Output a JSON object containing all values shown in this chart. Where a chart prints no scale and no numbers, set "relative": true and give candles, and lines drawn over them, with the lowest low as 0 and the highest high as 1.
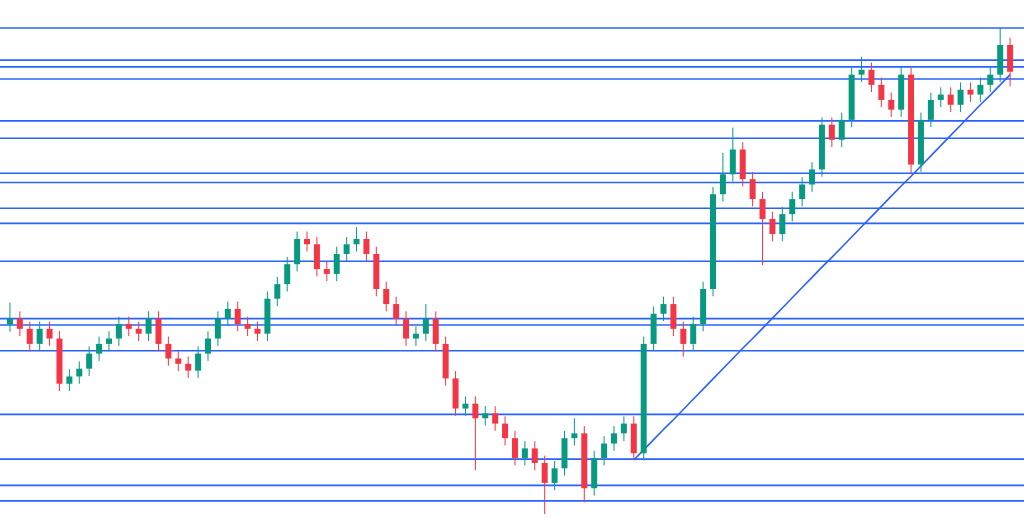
{
  "chart_data": {
    "type": "candlestick",
    "relative": true,
    "categories": [
      null,
      null,
      null,
      null,
      null,
      null,
      null,
      null,
      null,
      null,
      null,
      null,
      null,
      null,
      null,
      null,
      null,
      null,
      null,
      null,
      null,
      null,
      null,
      null,
      null,
      null,
      null,
      null,
      null,
      null,
      null,
      null,
      null,
      null,
      null,
      null,
      null,
      null,
      null,
      null,
      null,
      null,
      null,
      null,
      null,
      null,
      null,
      null,
      null,
      null,
      null,
      null,
      null,
      null,
      null,
      null,
      null,
      null,
      null,
      null,
      null,
      null,
      null,
      null,
      null,
      null,
      null,
      null,
      null,
      null,
      null,
      null,
      null,
      null,
      null,
      null,
      null,
      null,
      null,
      null,
      null,
      null,
      null,
      null,
      null,
      null,
      null,
      null,
      null,
      null,
      null,
      null,
      null,
      null,
      null,
      null,
      null,
      null,
      null,
      null,
      null,
      null
    ],
    "ohlc": [
      [
        0.39,
        0.435,
        0.375,
        0.402
      ],
      [
        0.402,
        0.417,
        0.366,
        0.381
      ],
      [
        0.381,
        0.396,
        0.335,
        0.35
      ],
      [
        0.35,
        0.396,
        0.335,
        0.381
      ],
      [
        0.381,
        0.396,
        0.346,
        0.361
      ],
      [
        0.361,
        0.376,
        0.253,
        0.268
      ],
      [
        0.268,
        0.298,
        0.253,
        0.283
      ],
      [
        0.283,
        0.314,
        0.268,
        0.299
      ],
      [
        0.299,
        0.345,
        0.284,
        0.33
      ],
      [
        0.33,
        0.365,
        0.315,
        0.35
      ],
      [
        0.35,
        0.376,
        0.335,
        0.361
      ],
      [
        0.361,
        0.406,
        0.346,
        0.391
      ],
      [
        0.391,
        0.406,
        0.366,
        0.381
      ],
      [
        0.381,
        0.396,
        0.356,
        0.371
      ],
      [
        0.371,
        0.417,
        0.356,
        0.402
      ],
      [
        0.402,
        0.417,
        0.335,
        0.35
      ],
      [
        0.35,
        0.365,
        0.305,
        0.32
      ],
      [
        0.32,
        0.335,
        0.294,
        0.309
      ],
      [
        0.309,
        0.324,
        0.28,
        0.295
      ],
      [
        0.295,
        0.345,
        0.28,
        0.33
      ],
      [
        0.33,
        0.376,
        0.315,
        0.361
      ],
      [
        0.361,
        0.417,
        0.346,
        0.402
      ],
      [
        0.402,
        0.437,
        0.387,
        0.422
      ],
      [
        0.422,
        0.437,
        0.376,
        0.391
      ],
      [
        0.391,
        0.406,
        0.366,
        0.381
      ],
      [
        0.381,
        0.396,
        0.356,
        0.371
      ],
      [
        0.371,
        0.458,
        0.356,
        0.443
      ],
      [
        0.443,
        0.488,
        0.428,
        0.473
      ],
      [
        0.473,
        0.529,
        0.458,
        0.514
      ],
      [
        0.514,
        0.581,
        0.499,
        0.566
      ],
      [
        0.566,
        0.581,
        0.54,
        0.555
      ],
      [
        0.555,
        0.57,
        0.489,
        0.504
      ],
      [
        0.504,
        0.519,
        0.479,
        0.494
      ],
      [
        0.494,
        0.55,
        0.479,
        0.535
      ],
      [
        0.535,
        0.57,
        0.52,
        0.555
      ],
      [
        0.555,
        0.59,
        0.54,
        0.566
      ],
      [
        0.566,
        0.581,
        0.52,
        0.535
      ],
      [
        0.535,
        0.55,
        0.448,
        0.463
      ],
      [
        0.463,
        0.478,
        0.417,
        0.432
      ],
      [
        0.432,
        0.447,
        0.387,
        0.402
      ],
      [
        0.402,
        0.417,
        0.346,
        0.361
      ],
      [
        0.361,
        0.386,
        0.346,
        0.371
      ],
      [
        0.371,
        0.432,
        0.356,
        0.402
      ],
      [
        0.402,
        0.417,
        0.335,
        0.35
      ],
      [
        0.35,
        0.365,
        0.264,
        0.279
      ],
      [
        0.279,
        0.294,
        0.202,
        0.217
      ],
      [
        0.217,
        0.242,
        0.202,
        0.227
      ],
      [
        0.227,
        0.242,
        0.09,
        0.197
      ],
      [
        0.197,
        0.222,
        0.182,
        0.207
      ],
      [
        0.207,
        0.222,
        0.171,
        0.186
      ],
      [
        0.186,
        0.201,
        0.141,
        0.156
      ],
      [
        0.156,
        0.171,
        0.1,
        0.115
      ],
      [
        0.115,
        0.15,
        0.1,
        0.135
      ],
      [
        0.135,
        0.15,
        0.09,
        0.105
      ],
      [
        0.105,
        0.12,
        0.0,
        0.064
      ],
      [
        0.064,
        0.109,
        0.049,
        0.094
      ],
      [
        0.094,
        0.171,
        0.079,
        0.156
      ],
      [
        0.156,
        0.197,
        0.141,
        0.166
      ],
      [
        0.166,
        0.181,
        0.024,
        0.053
      ],
      [
        0.053,
        0.13,
        0.038,
        0.115
      ],
      [
        0.115,
        0.16,
        0.1,
        0.145
      ],
      [
        0.145,
        0.181,
        0.13,
        0.166
      ],
      [
        0.166,
        0.201,
        0.15,
        0.186
      ],
      [
        0.186,
        0.201,
        0.111,
        0.125
      ],
      [
        0.125,
        0.365,
        0.11,
        0.35
      ],
      [
        0.35,
        0.427,
        0.335,
        0.412
      ],
      [
        0.412,
        0.447,
        0.397,
        0.432
      ],
      [
        0.432,
        0.447,
        0.366,
        0.381
      ],
      [
        0.381,
        0.396,
        0.324,
        0.35
      ],
      [
        0.35,
        0.406,
        0.335,
        0.391
      ],
      [
        0.391,
        0.478,
        0.376,
        0.463
      ],
      [
        0.463,
        0.673,
        0.448,
        0.658
      ],
      [
        0.658,
        0.743,
        0.643,
        0.699
      ],
      [
        0.699,
        0.795,
        0.684,
        0.75
      ],
      [
        0.75,
        0.765,
        0.674,
        0.689
      ],
      [
        0.689,
        0.704,
        0.633,
        0.648
      ],
      [
        0.648,
        0.663,
        0.512,
        0.607
      ],
      [
        0.607,
        0.622,
        0.561,
        0.576
      ],
      [
        0.576,
        0.632,
        0.561,
        0.617
      ],
      [
        0.617,
        0.663,
        0.602,
        0.648
      ],
      [
        0.648,
        0.693,
        0.633,
        0.678
      ],
      [
        0.678,
        0.724,
        0.663,
        0.709
      ],
      [
        0.709,
        0.816,
        0.694,
        0.801
      ],
      [
        0.801,
        0.816,
        0.755,
        0.77
      ],
      [
        0.77,
        0.826,
        0.755,
        0.811
      ],
      [
        0.811,
        0.919,
        0.796,
        0.904
      ],
      [
        0.904,
        0.941,
        0.889,
        0.914
      ],
      [
        0.914,
        0.929,
        0.868,
        0.883
      ],
      [
        0.883,
        0.898,
        0.837,
        0.852
      ],
      [
        0.852,
        0.867,
        0.817,
        0.832
      ],
      [
        0.832,
        0.919,
        0.817,
        0.904
      ],
      [
        0.904,
        0.919,
        0.701,
        0.719
      ],
      [
        0.719,
        0.826,
        0.704,
        0.811
      ],
      [
        0.811,
        0.867,
        0.796,
        0.852
      ],
      [
        0.852,
        0.878,
        0.837,
        0.863
      ],
      [
        0.863,
        0.878,
        0.827,
        0.842
      ],
      [
        0.842,
        0.888,
        0.827,
        0.873
      ],
      [
        0.873,
        0.888,
        0.848,
        0.863
      ],
      [
        0.863,
        0.898,
        0.848,
        0.883
      ],
      [
        0.883,
        0.919,
        0.868,
        0.904
      ],
      [
        0.904,
        1.0,
        0.889,
        0.965
      ],
      [
        0.965,
        0.98,
        0.88,
        0.91
      ]
    ],
    "colors": [
      "#089981",
      "#f23645",
      "#f23645",
      "#089981",
      "#f23645",
      "#f23645",
      "#089981",
      "#089981",
      "#089981",
      "#089981",
      "#089981",
      "#089981",
      "#f23645",
      "#f23645",
      "#089981",
      "#f23645",
      "#f23645",
      "#f23645",
      "#f23645",
      "#089981",
      "#089981",
      "#089981",
      "#089981",
      "#f23645",
      "#f23645",
      "#f23645",
      "#089981",
      "#089981",
      "#089981",
      "#089981",
      "#f23645",
      "#f23645",
      "#f23645",
      "#089981",
      "#089981",
      "#089981",
      "#f23645",
      "#f23645",
      "#f23645",
      "#f23645",
      "#f23645",
      "#089981",
      "#089981",
      "#f23645",
      "#f23645",
      "#f23645",
      "#089981",
      "#f23645",
      "#089981",
      "#f23645",
      "#f23645",
      "#f23645",
      "#089981",
      "#f23645",
      "#f23645",
      "#089981",
      "#089981",
      "#089981",
      "#f23645",
      "#089981",
      "#089981",
      "#089981",
      "#089981",
      "#f23645",
      "#089981",
      "#089981",
      "#089981",
      "#f23645",
      "#f23645",
      "#089981",
      "#089981",
      "#089981",
      "#089981",
      "#089981",
      "#f23645",
      "#f23645",
      "#f23645",
      "#f23645",
      "#089981",
      "#089981",
      "#089981",
      "#089981",
      "#089981",
      "#f23645",
      "#089981",
      "#089981",
      "#089981",
      "#f23645",
      "#f23645",
      "#f23645",
      "#089981",
      "#f23645",
      "#089981",
      "#089981",
      "#089981",
      "#f23645",
      "#089981",
      "#f23645",
      "#089981",
      "#089981",
      "#089981",
      "#f23645"
    ],
    "series": [
      {
        "type": "line",
        "color": "#2962ff",
        "values": [
          null,
          null,
          null,
          null,
          null,
          null,
          null,
          null,
          null,
          null,
          null,
          null,
          null,
          null,
          null,
          null,
          null,
          null,
          null,
          null,
          null,
          null,
          null,
          null,
          null,
          null,
          null,
          null,
          null,
          null,
          null,
          null,
          null,
          null,
          null,
          null,
          null,
          null,
          null,
          null,
          null,
          null,
          null,
          null,
          null,
          null,
          null,
          null,
          null,
          null,
          null,
          null,
          null,
          null,
          null,
          null,
          null,
          null,
          null,
          null,
          null,
          null,
          null,
          0.111,
          0.132,
          0.153,
          0.174,
          0.194,
          0.215,
          0.236,
          0.257,
          0.278,
          0.299,
          0.32,
          0.341,
          0.361,
          0.382,
          0.403,
          0.424,
          0.445,
          0.466,
          0.487,
          0.508,
          0.528,
          0.549,
          0.57,
          0.591,
          0.612,
          0.633,
          0.654,
          0.675,
          0.695,
          0.716,
          0.737,
          0.758,
          0.779,
          0.8,
          0.821,
          0.842,
          0.862,
          0.883,
          0.904
        ]
      }
    ],
    "ref_lines": [
      {
        "axis": "y",
        "value": 1.0,
        "color": "#2962ff"
      },
      {
        "axis": "y",
        "value": 0.934,
        "color": "#2962ff"
      },
      {
        "axis": "y",
        "value": 0.92,
        "color": "#2962ff"
      },
      {
        "axis": "y",
        "value": 0.895,
        "color": "#2962ff"
      },
      {
        "axis": "y",
        "value": 0.809,
        "color": "#2962ff"
      },
      {
        "axis": "y",
        "value": 0.773,
        "color": "#2962ff"
      },
      {
        "axis": "y",
        "value": 0.701,
        "color": "#2962ff"
      },
      {
        "axis": "y",
        "value": 0.682,
        "color": "#2962ff"
      },
      {
        "axis": "y",
        "value": 0.629,
        "color": "#2962ff"
      },
      {
        "axis": "y",
        "value": 0.598,
        "color": "#2962ff"
      },
      {
        "axis": "y",
        "value": 0.52,
        "color": "#2962ff"
      },
      {
        "axis": "y",
        "value": 0.402,
        "color": "#2962ff"
      },
      {
        "axis": "y",
        "value": 0.389,
        "color": "#2962ff"
      },
      {
        "axis": "y",
        "value": 0.336,
        "color": "#2962ff"
      },
      {
        "axis": "y",
        "value": 0.205,
        "color": "#2962ff"
      },
      {
        "axis": "y",
        "value": 0.113,
        "color": "#2962ff"
      },
      {
        "axis": "y",
        "value": 0.059,
        "color": "#2962ff"
      },
      {
        "axis": "y",
        "value": 0.027,
        "color": "#2962ff"
      }
    ]
  }
}
